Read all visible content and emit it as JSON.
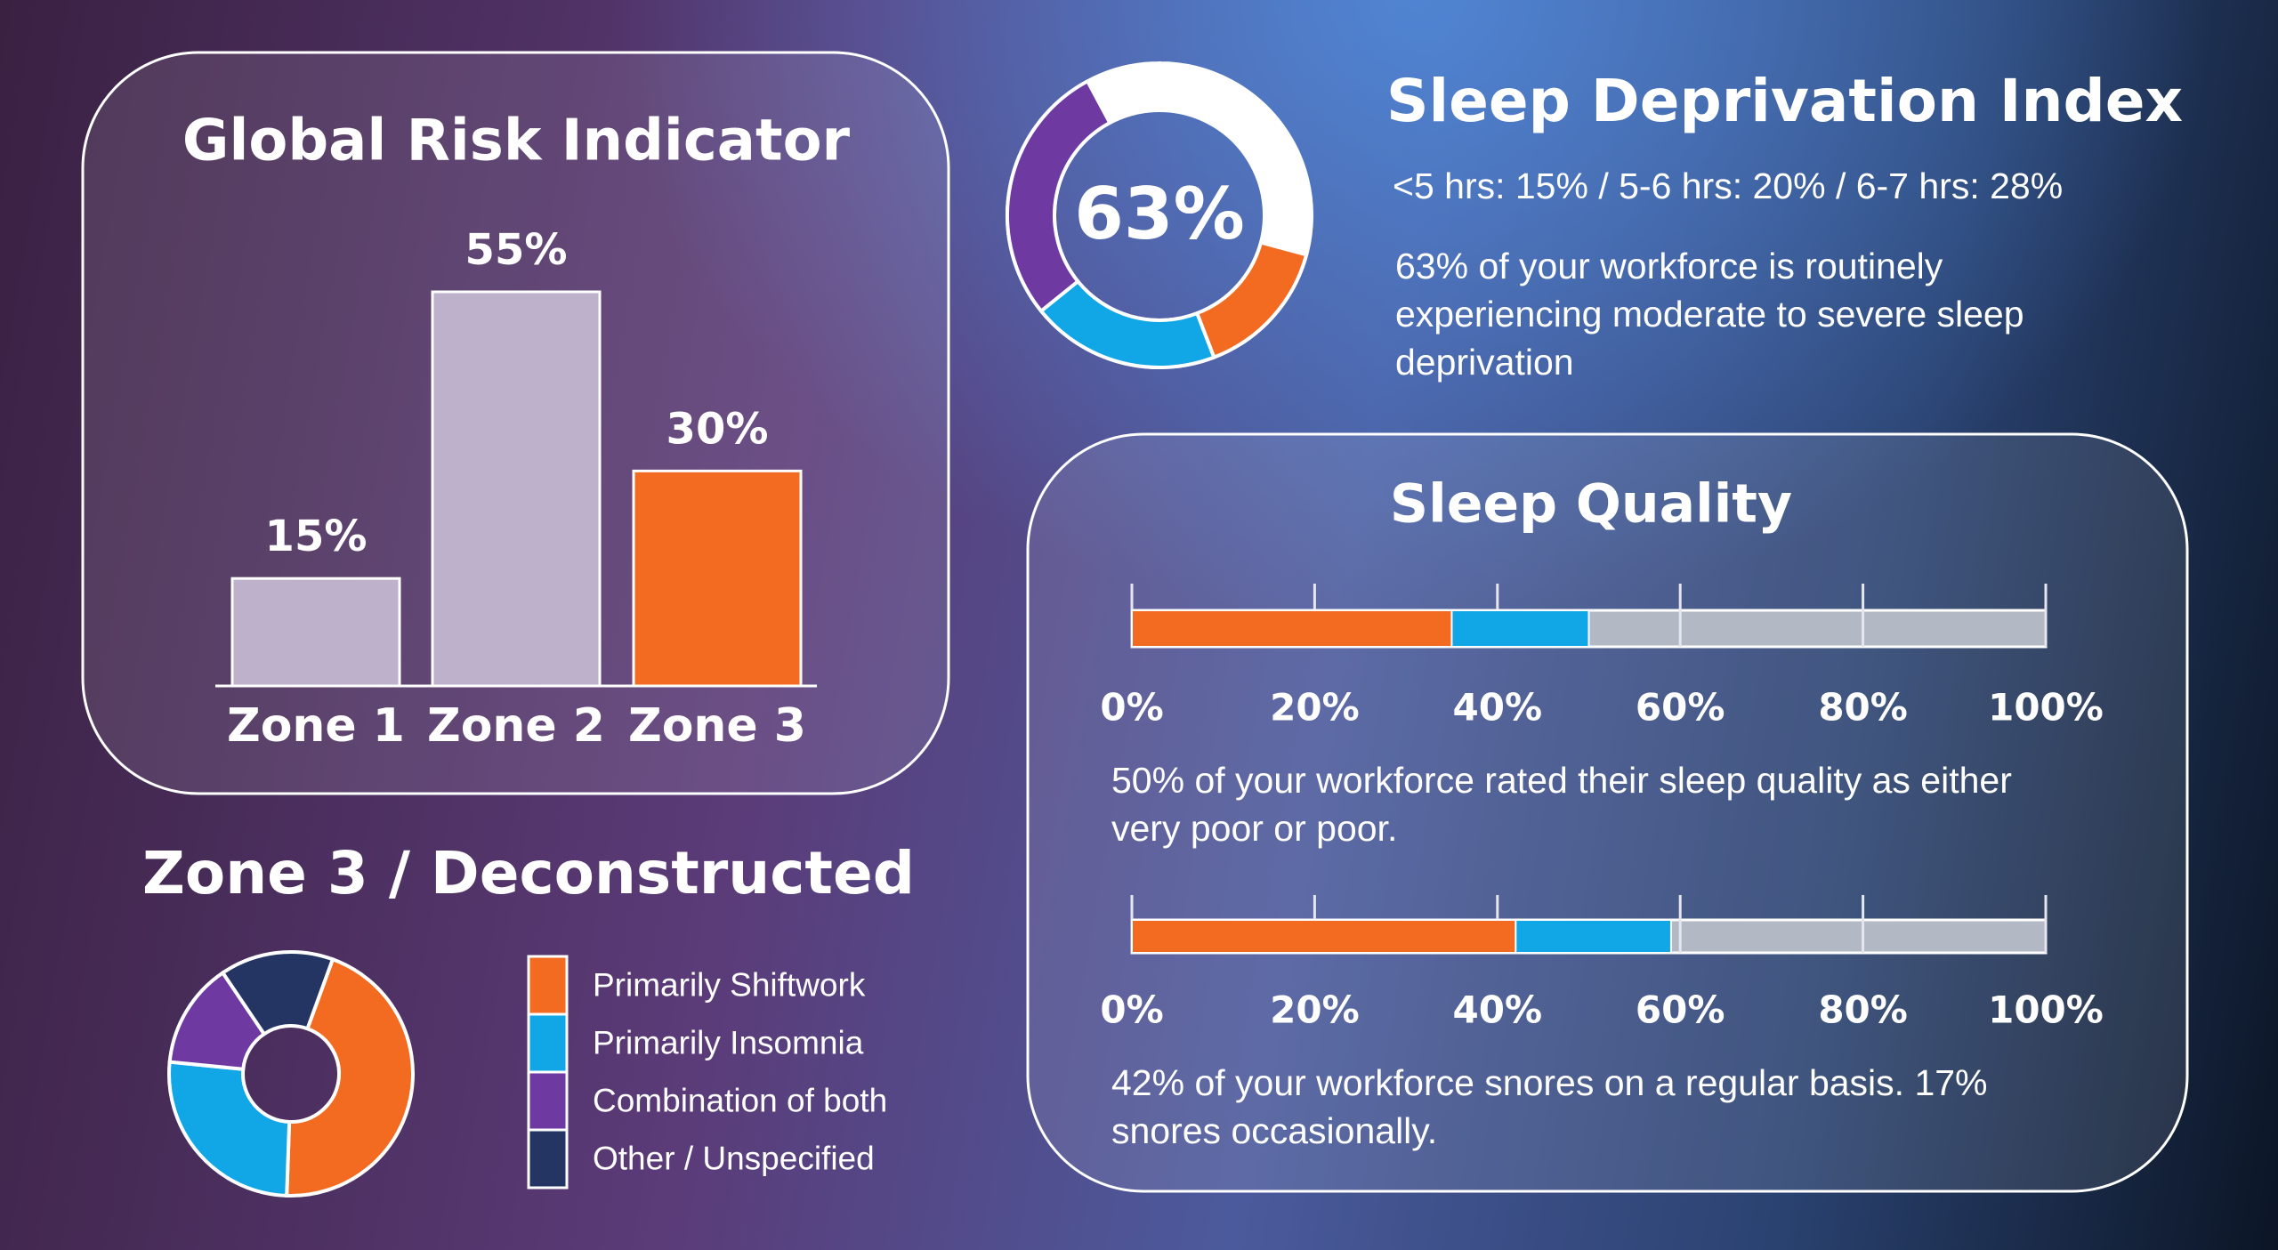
{
  "chart_data": [
    {
      "type": "bar",
      "title": "Global Risk Indicator",
      "categories": [
        "Zone 1",
        "Zone 2",
        "Zone 3"
      ],
      "values": [
        15,
        55,
        30
      ],
      "value_labels": [
        "15%",
        "55%",
        "30%"
      ],
      "colors": [
        "#bdb1cc",
        "#bdb1cc",
        "#f26b21"
      ]
    },
    {
      "type": "donut",
      "title": "Sleep Deprivation Index",
      "subtitle": "<5 hrs: 15% / 5-6 hrs: 20% / 6-7 hrs: 28%",
      "description": "63% of your workforce is routinely experiencing moderate to severe sleep deprivation",
      "total": {
        "value": 63,
        "label": "63%"
      },
      "values": [
        15,
        20,
        28
      ],
      "colors": [
        "#f26b21",
        "#11a6e6",
        "#6e3aa1"
      ]
    },
    {
      "type": "stacked_bar_h",
      "title": "Sleep Quality",
      "series": [
        {
          "color": "#f26b21",
          "values": [
            35,
            42
          ]
        },
        {
          "color": "#11a6e6",
          "values": [
            15,
            17
          ]
        }
      ],
      "xlim": [
        0,
        100
      ],
      "xticks": [
        {
          "value": 0,
          "label": "0%"
        },
        {
          "value": 20,
          "label": "20%"
        },
        {
          "value": 40,
          "label": "40%"
        },
        {
          "value": 60,
          "label": "60%"
        },
        {
          "value": 80,
          "label": "80%"
        },
        {
          "value": 100,
          "label": "100%"
        }
      ],
      "notes": [
        "50% of your workforce rated their sleep quality as either very poor or poor.",
        "42% of your workforce snores on a regular basis. 17% snores occasionally."
      ]
    },
    {
      "type": "donut",
      "title": "Zone 3 / Deconstructed",
      "categories": [
        "Primarily Shiftwork",
        "Primarily Insomnia",
        "Combination of both",
        "Other / Unspecified"
      ],
      "values": [
        45,
        26,
        14,
        15
      ],
      "colors": [
        "#f26b21",
        "#11a6e6",
        "#6e3aa1",
        "#243564"
      ]
    }
  ]
}
